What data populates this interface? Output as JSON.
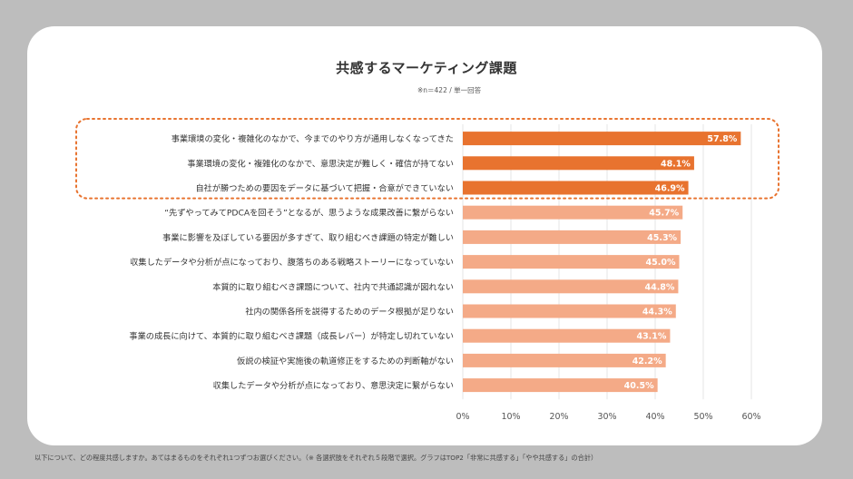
{
  "title": "共感するマーケティング課題",
  "note": "※n＝422 / 単一回答",
  "footnote": "以下について、どの程度共感しますか。あてはまるものをそれぞれ1つずつお選びください。（※ 各選択肢をそれぞれ５段階で選択。グラフはTOP2「非常に共感する」「やや共感する」の合計）",
  "chart_data": {
    "type": "bar",
    "orientation": "horizontal",
    "categories": [
      "事業環境の変化・複雑化のなかで、今までのやり方が通用しなくなってきた",
      "事業環境の変化・複雑化のなかで、意思決定が難しく・確信が持てない",
      "自社が勝つための要因をデータに基づいて把握・合意ができていない",
      "“先ずやってみてPDCAを回そう”となるが、思うような成果改善に繋がらない",
      "事業に影響を及ぼしている要因が多すぎて、取り組むべき課題の特定が難しい",
      "収集したデータや分析が点になっており、腹落ちのある戦略ストーリーになっていない",
      "本質的に取り組むべき課題について、社内で共通認識が図れない",
      "社内の関係各所を説得するためのデータ根拠が足りない",
      "事業の成長に向けて、本質的に取り組むべき課題（成長レバー）が特定し切れていない",
      "仮説の検証や実施後の軌道修正をするための判断軸がない",
      "収集したデータや分析が点になっており、意思決定に繋がらない"
    ],
    "values": [
      57.8,
      48.1,
      46.9,
      45.7,
      45.3,
      45.0,
      44.8,
      44.3,
      43.1,
      42.2,
      40.5
    ],
    "value_labels": [
      "57.8%",
      "48.1%",
      "46.9%",
      "45.7%",
      "45.3%",
      "45.0%",
      "44.8%",
      "44.3%",
      "43.1%",
      "42.2%",
      "40.5%"
    ],
    "highlighted_count": 3,
    "xlim": [
      0,
      60
    ],
    "xticks": [
      0,
      10,
      20,
      30,
      40,
      50,
      60
    ],
    "xtick_labels": [
      "0%",
      "10%",
      "20%",
      "30%",
      "40%",
      "50%",
      "60%"
    ],
    "colors": {
      "highlight_bar": "#e8732f",
      "normal_bar": "#f4aa87",
      "highlight_box": "#e8732f",
      "value_text": "#ffffff"
    }
  }
}
